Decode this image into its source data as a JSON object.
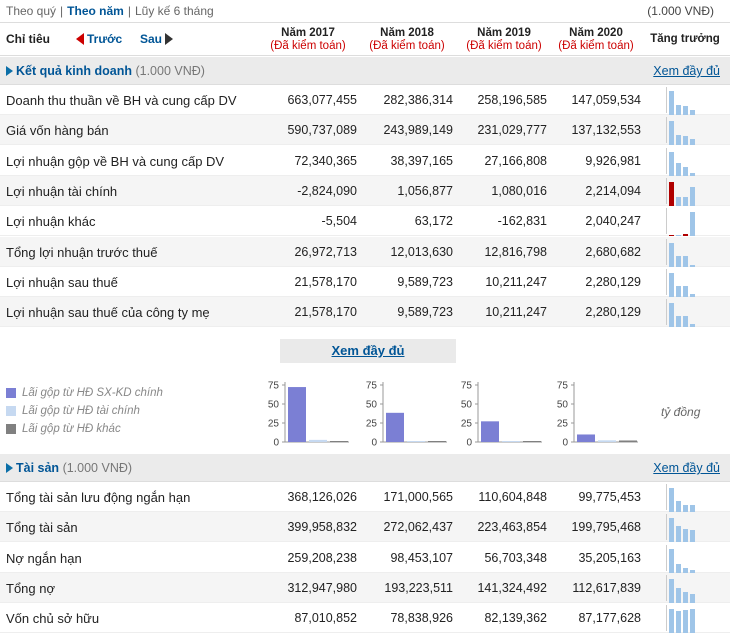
{
  "topbar": {
    "q": "Theo quý",
    "sep1": "|",
    "y": "Theo năm",
    "sep2": "|",
    "acc": "Lũy kế 6 tháng",
    "unit": "(1.000 VNĐ)"
  },
  "header": {
    "label": "Chỉ tiêu",
    "prev": "Trước",
    "next": "Sau",
    "growth": "Tăng trưởng",
    "years": [
      {
        "year": "Năm 2017",
        "sub": "(Đã kiểm toán)"
      },
      {
        "year": "Năm 2018",
        "sub": "(Đã kiểm toán)"
      },
      {
        "year": "Năm 2019",
        "sub": "(Đã kiểm toán)"
      },
      {
        "year": "Năm 2020",
        "sub": "(Đã kiểm toán)"
      }
    ]
  },
  "sec1": {
    "title": "Kết quả kinh doanh",
    "unit": "(1.000 VNĐ)",
    "more": "Xem đầy đủ"
  },
  "rows1": [
    {
      "name": "Doanh thu thuần về BH và cung cấp DV",
      "v": [
        "663,077,455",
        "282,386,314",
        "258,196,585",
        "147,059,534"
      ],
      "g": [
        663077455,
        282386314,
        258196585,
        147059534
      ]
    },
    {
      "name": "Giá vốn hàng bán",
      "v": [
        "590,737,089",
        "243,989,149",
        "231,029,777",
        "137,132,553"
      ],
      "g": [
        590737089,
        243989149,
        231029777,
        137132553
      ]
    },
    {
      "name": "Lợi nhuận gộp về BH và cung cấp DV",
      "v": [
        "72,340,365",
        "38,397,165",
        "27,166,808",
        "9,926,981"
      ],
      "g": [
        72340365,
        38397165,
        27166808,
        9926981
      ]
    },
    {
      "name": "Lợi nhuận tài chính",
      "v": [
        "-2,824,090",
        "1,056,877",
        "1,080,016",
        "2,214,094"
      ],
      "g": [
        -2824090,
        1056877,
        1080016,
        2214094
      ]
    },
    {
      "name": "Lợi nhuận khác",
      "v": [
        "-5,504",
        "63,172",
        "-162,831",
        "2,040,247"
      ],
      "g": [
        -5504,
        63172,
        -162831,
        2040247
      ]
    },
    {
      "name": "Tổng lợi nhuận trước thuế",
      "v": [
        "26,972,713",
        "12,013,630",
        "12,816,798",
        "2,680,682"
      ],
      "g": [
        26972713,
        12013630,
        12816798,
        2680682
      ]
    },
    {
      "name": "Lợi nhuận sau thuế",
      "v": [
        "21,578,170",
        "9,589,723",
        "10,211,247",
        "2,280,129"
      ],
      "g": [
        21578170,
        9589723,
        10211247,
        2280129
      ]
    },
    {
      "name": "Lợi nhuận sau thuế của công ty mẹ",
      "v": [
        "21,578,170",
        "9,589,723",
        "10,211,247",
        "2,280,129"
      ],
      "g": [
        21578170,
        9589723,
        10211247,
        2280129
      ]
    }
  ],
  "more_button": "Xem đầy đủ",
  "legend": [
    {
      "label": "Lãi gộp từ HĐ SX-KD chính",
      "color": "#7b7fd4"
    },
    {
      "label": "Lãi gộp từ HĐ tài chính",
      "color": "#c6d9f1"
    },
    {
      "label": "Lãi gộp từ HĐ khác",
      "color": "#808080"
    }
  ],
  "unit_label": "tỷ đồng",
  "chart_data": [
    {
      "type": "bar",
      "yticks": [
        "75",
        "50",
        "25",
        "0"
      ],
      "ylim": [
        0,
        75
      ],
      "categories": [
        "Lãi gộp từ HĐ SX-KD chính",
        "Lãi gộp từ HĐ tài chính",
        "Lãi gộp từ HĐ khác"
      ],
      "values": [
        72.3,
        -2.8,
        0.0
      ]
    },
    {
      "type": "bar",
      "yticks": [
        "75",
        "50",
        "25",
        "0"
      ],
      "ylim": [
        0,
        75
      ],
      "categories": [
        "Lãi gộp từ HĐ SX-KD chính",
        "Lãi gộp từ HĐ tài chính",
        "Lãi gộp từ HĐ khác"
      ],
      "values": [
        38.4,
        1.1,
        0.1
      ]
    },
    {
      "type": "bar",
      "yticks": [
        "75",
        "50",
        "25",
        "0"
      ],
      "ylim": [
        0,
        75
      ],
      "categories": [
        "Lãi gộp từ HĐ SX-KD chính",
        "Lãi gộp từ HĐ tài chính",
        "Lãi gộp từ HĐ khác"
      ],
      "values": [
        27.2,
        1.1,
        -0.2
      ]
    },
    {
      "type": "bar",
      "yticks": [
        "75",
        "50",
        "25",
        "0"
      ],
      "ylim": [
        0,
        75
      ],
      "categories": [
        "Lãi gộp từ HĐ SX-KD chính",
        "Lãi gộp từ HĐ tài chính",
        "Lãi gộp từ HĐ khác"
      ],
      "values": [
        9.9,
        2.2,
        2.0
      ]
    }
  ],
  "sec2": {
    "title": "Tài sản",
    "unit": "(1.000 VNĐ)",
    "more": "Xem đầy đủ"
  },
  "rows2": [
    {
      "name": "Tổng tài sản lưu động ngắn hạn",
      "v": [
        "368,126,026",
        "171,000,565",
        "110,604,848",
        "99,775,453"
      ],
      "g": [
        368126026,
        171000565,
        110604848,
        99775453
      ]
    },
    {
      "name": "Tổng tài sản",
      "v": [
        "399,958,832",
        "272,062,437",
        "223,463,854",
        "199,795,468"
      ],
      "g": [
        399958832,
        272062437,
        223463854,
        199795468
      ]
    },
    {
      "name": "Nợ ngắn hạn",
      "v": [
        "259,208,238",
        "98,453,107",
        "56,703,348",
        "35,205,163"
      ],
      "g": [
        259208238,
        98453107,
        56703348,
        35205163
      ]
    },
    {
      "name": "Tổng nợ",
      "v": [
        "312,947,980",
        "193,223,511",
        "141,324,492",
        "112,617,839"
      ],
      "g": [
        312947980,
        193223511,
        141324492,
        112617839
      ]
    },
    {
      "name": "Vốn chủ sở hữu",
      "v": [
        "87,010,852",
        "78,838,926",
        "82,139,362",
        "87,177,628"
      ],
      "g": [
        87010852,
        78838926,
        82139362,
        87177628
      ]
    }
  ]
}
